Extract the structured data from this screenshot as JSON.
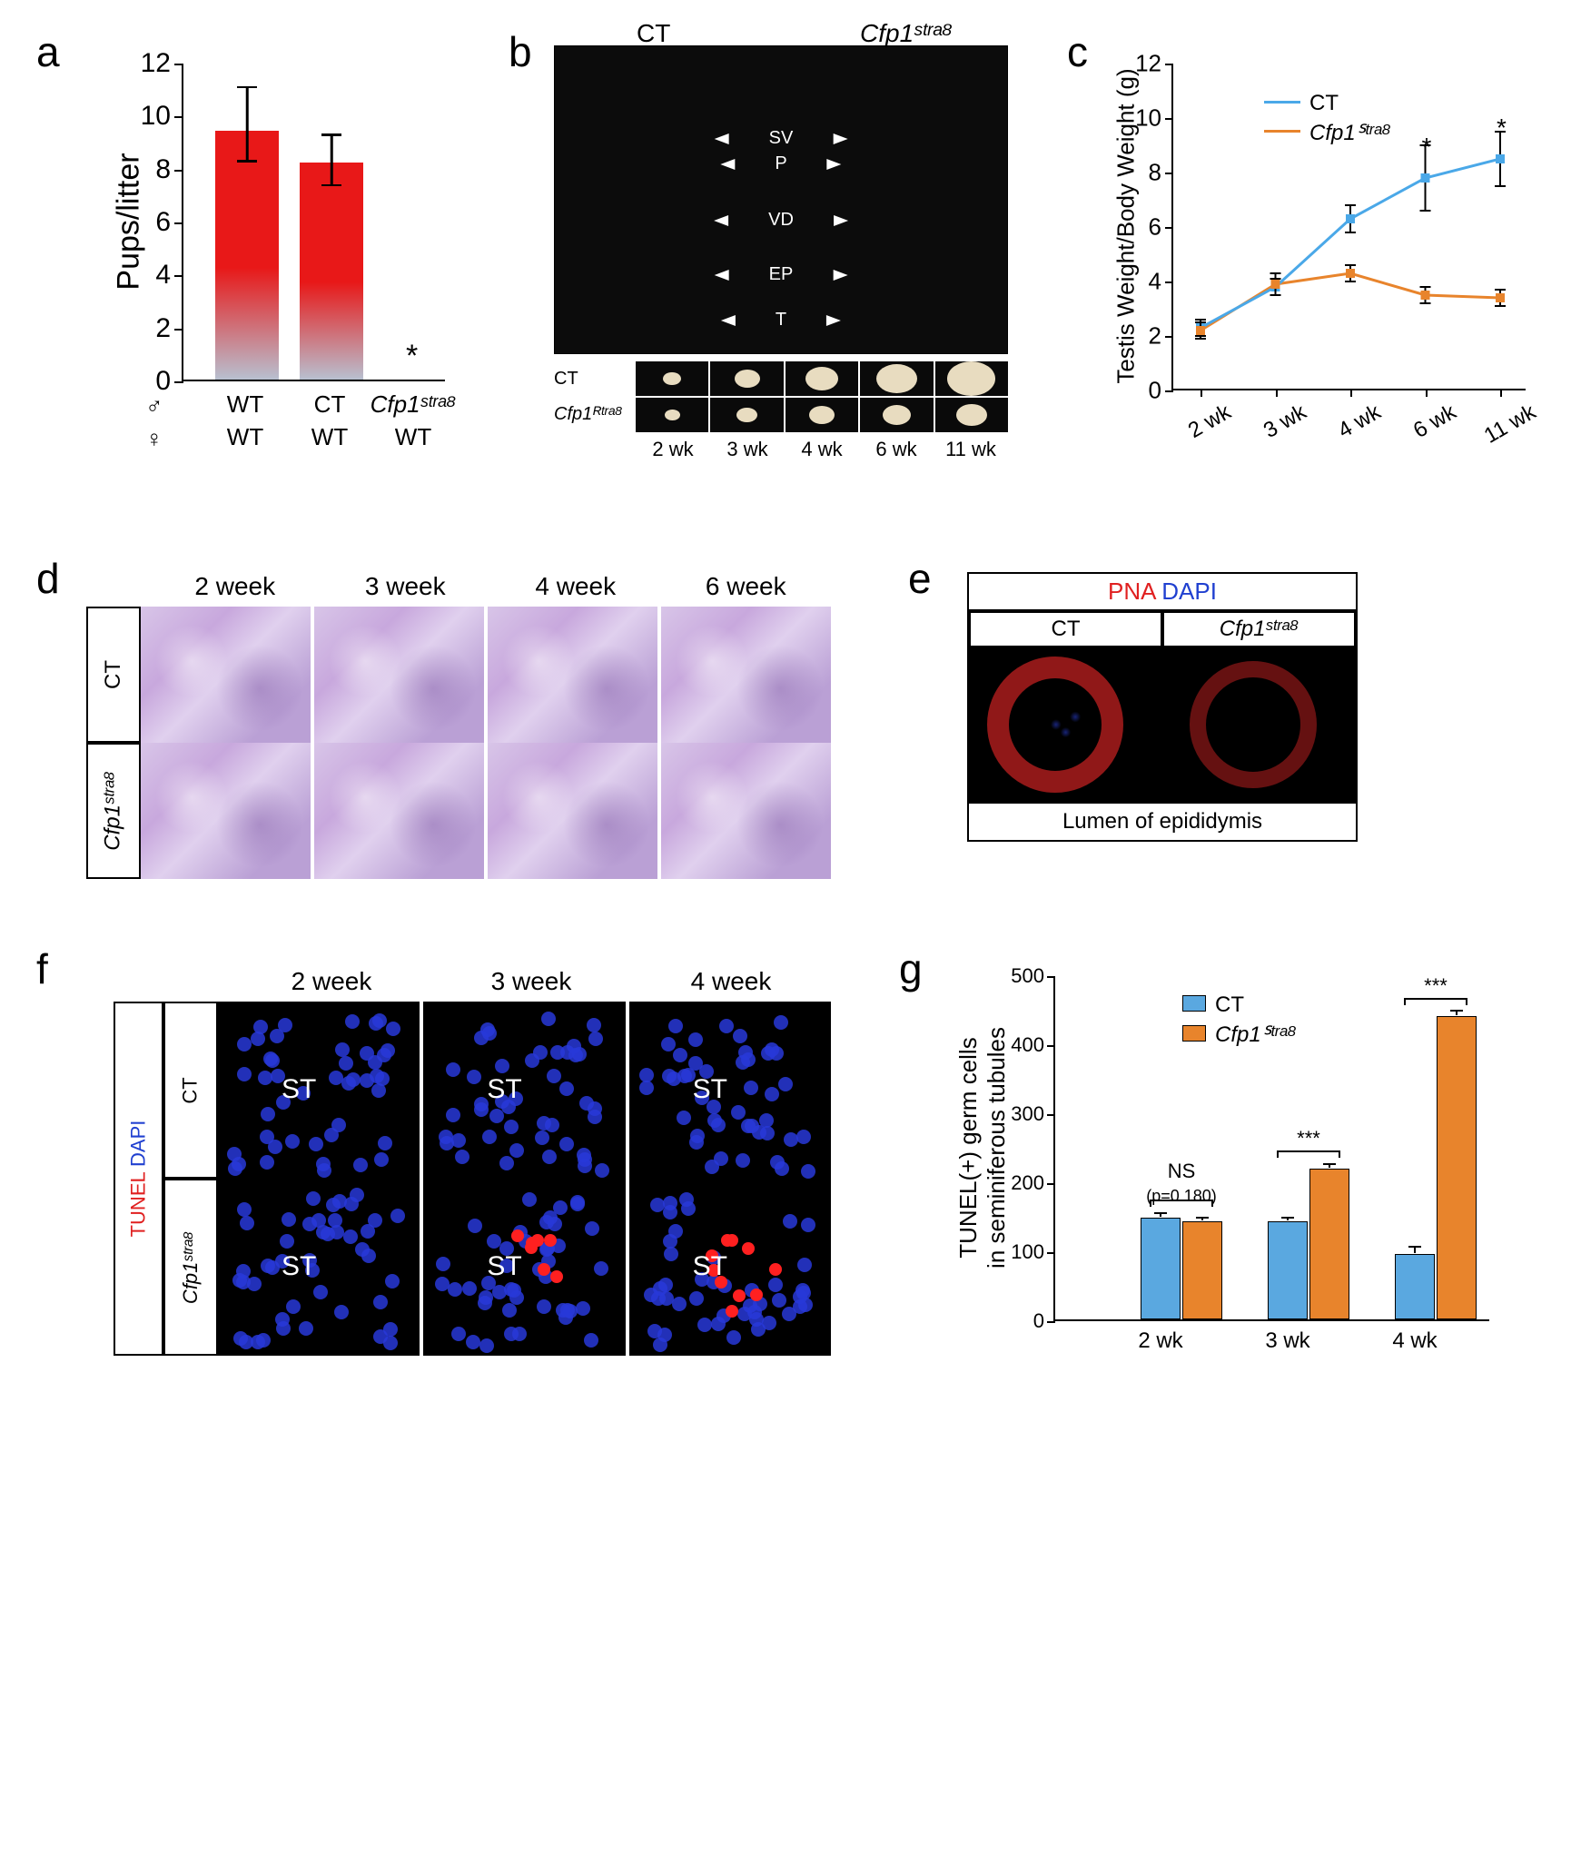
{
  "panelA": {
    "label": "a",
    "ylabel": "Pups/litter",
    "ylim": [
      0,
      12
    ],
    "ytick_step": 2,
    "categories": [
      "WT",
      "CT",
      "Cfp1ˢᵗʳᵃ⁸"
    ],
    "male_row": [
      "WT",
      "CT",
      "Cfp1ˢᵗʳᵃ⁸"
    ],
    "female_row": [
      "WT",
      "WT",
      "WT"
    ],
    "male_symbol": "♂",
    "female_symbol": "♀",
    "values": [
      9.4,
      8.2,
      0
    ],
    "err_low": [
      1.2,
      0.9,
      0
    ],
    "err_high": [
      1.6,
      1.0,
      0
    ],
    "bar_gradient_top": "#e81818",
    "bar_gradient_bottom": "#b8c0d0",
    "star_marker": "*"
  },
  "panelB": {
    "label": "b",
    "top_labels": [
      "CT",
      "Cfp1ˢᵗʳᵃ⁸"
    ],
    "anatomy": [
      "SV",
      "P",
      "VD",
      "EP",
      "T"
    ],
    "row_labels": [
      "CT",
      "Cfp1ᴿᵗʳᵃ⁸"
    ],
    "timepoints": [
      "2 wk",
      "3 wk",
      "4 wk",
      "6 wk",
      "11 wk"
    ],
    "egg_sizes_ct": [
      14,
      20,
      26,
      32,
      38
    ],
    "egg_sizes_ko": [
      12,
      16,
      20,
      22,
      24
    ]
  },
  "panelC": {
    "label": "c",
    "ylabel": "Testis Weight/Body Weight (g)",
    "ylim": [
      0,
      12
    ],
    "ytick_step": 2,
    "xticks": [
      "2 wk",
      "3 wk",
      "4 wk",
      "6 wk",
      "11 wk"
    ],
    "series": [
      {
        "name": "CT",
        "color": "#4aa8e8",
        "y": [
          2.3,
          3.8,
          6.3,
          7.8,
          8.5
        ],
        "err": [
          0.3,
          0.3,
          0.5,
          1.2,
          1.0
        ]
      },
      {
        "name": "Cfp1ᔆᵗʳᵃ⁸",
        "color": "#e8842c",
        "y": [
          2.2,
          3.9,
          4.3,
          3.5,
          3.4
        ],
        "err": [
          0.3,
          0.4,
          0.3,
          0.3,
          0.3
        ]
      }
    ],
    "stars": [
      {
        "x": 3,
        "label": "*"
      },
      {
        "x": 4,
        "label": "*"
      }
    ]
  },
  "panelD": {
    "label": "d",
    "columns": [
      "2 week",
      "3 week",
      "4 week",
      "6 week"
    ],
    "rows": [
      "CT",
      "Cfp1ˢᵗʳᵃ⁸"
    ]
  },
  "panelE": {
    "label": "e",
    "stain_pna": "PNA",
    "stain_dapi": "DAPI",
    "cols": [
      "CT",
      "Cfp1ˢᵗʳᵃ⁸"
    ],
    "footer": "Lumen of epididymis"
  },
  "panelF": {
    "label": "f",
    "stain_tunel": "TUNEL",
    "stain_dapi": "DAPI",
    "columns": [
      "2 week",
      "3 week",
      "4 week"
    ],
    "rows": [
      "CT",
      "Cfp1ˢᵗʳᵃ⁸"
    ],
    "st_label": "ST"
  },
  "panelG": {
    "label": "g",
    "ylabel_line1": "TUNEL(+) germ cells",
    "ylabel_line2": "in seminiferous tubules",
    "ylim": [
      0,
      500
    ],
    "ytick_step": 100,
    "xticks": [
      "2 wk",
      "3 wk",
      "4 wk"
    ],
    "groups": [
      "CT",
      "Cfp1ᔆᵗʳᵃ⁸"
    ],
    "colors": [
      "#5aa8e0",
      "#e8842c"
    ],
    "values_ct": [
      148,
      142,
      95
    ],
    "values_ko": [
      142,
      218,
      440
    ],
    "err_ct": [
      3,
      3,
      8
    ],
    "err_ko": [
      3,
      5,
      5
    ],
    "sig": [
      "NS",
      "***",
      "***"
    ],
    "ns_p": "(p=0.180)"
  }
}
